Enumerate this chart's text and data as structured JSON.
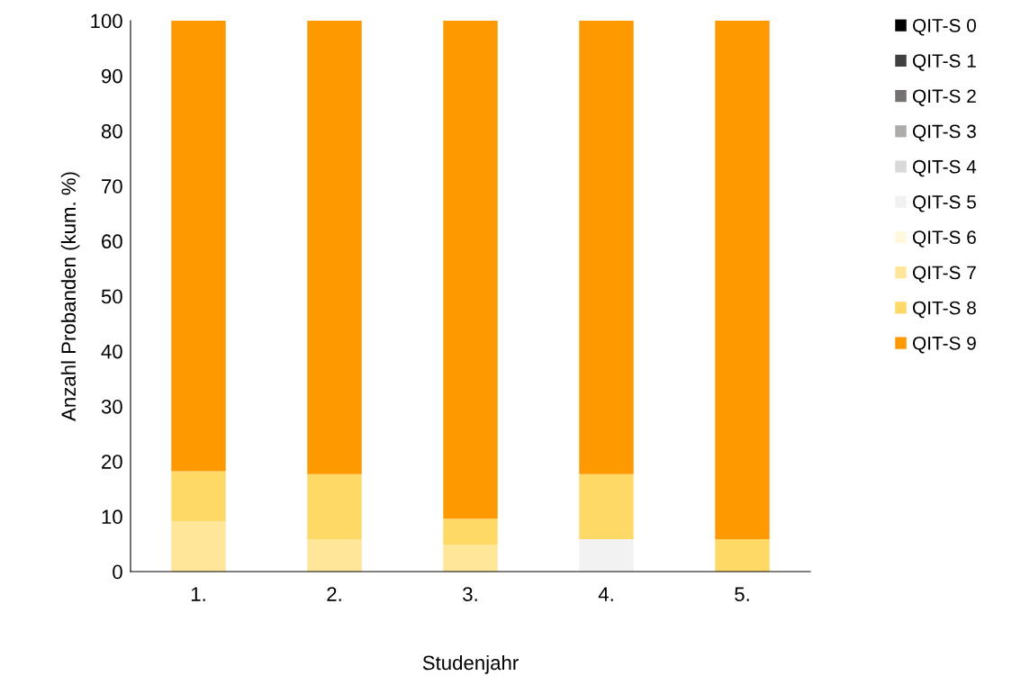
{
  "chart_data": {
    "type": "bar",
    "stacked": true,
    "xlabel": "Studenjahr",
    "ylabel": "Anzahl Probanden (kum. %)",
    "categories": [
      "1.",
      "2.",
      "3.",
      "4.",
      "5."
    ],
    "ylim": [
      0,
      100
    ],
    "yticks": [
      0,
      10,
      20,
      30,
      40,
      50,
      60,
      70,
      80,
      90,
      100
    ],
    "grid": false,
    "legend": "right",
    "series": [
      {
        "name": "QIT-S 0",
        "color": "#000000",
        "values": [
          0,
          0,
          0,
          0,
          0
        ]
      },
      {
        "name": "QIT-S 1",
        "color": "#404040",
        "values": [
          0,
          0,
          0,
          0,
          0
        ]
      },
      {
        "name": "QIT-S 2",
        "color": "#767171",
        "values": [
          0,
          0,
          0,
          0,
          0
        ]
      },
      {
        "name": "QIT-S 3",
        "color": "#aeabab",
        "values": [
          0,
          0,
          0,
          0,
          0
        ]
      },
      {
        "name": "QIT-S 4",
        "color": "#d9d9d9",
        "values": [
          0,
          0,
          0,
          0,
          0
        ]
      },
      {
        "name": "QIT-S 5",
        "color": "#f2f2f2",
        "values": [
          0,
          0,
          0,
          5.9,
          0
        ]
      },
      {
        "name": "QIT-S 6",
        "color": "#fff8dc",
        "values": [
          0,
          0,
          0,
          0,
          0
        ]
      },
      {
        "name": "QIT-S 7",
        "color": "#ffe699",
        "values": [
          9.1,
          5.9,
          4.8,
          0,
          0
        ]
      },
      {
        "name": "QIT-S 8",
        "color": "#ffd966",
        "values": [
          9.1,
          11.8,
          4.8,
          11.8,
          5.9
        ]
      },
      {
        "name": "QIT-S 9",
        "color": "#ff9900",
        "values": [
          81.8,
          82.3,
          90.4,
          82.3,
          94.1
        ]
      }
    ]
  }
}
